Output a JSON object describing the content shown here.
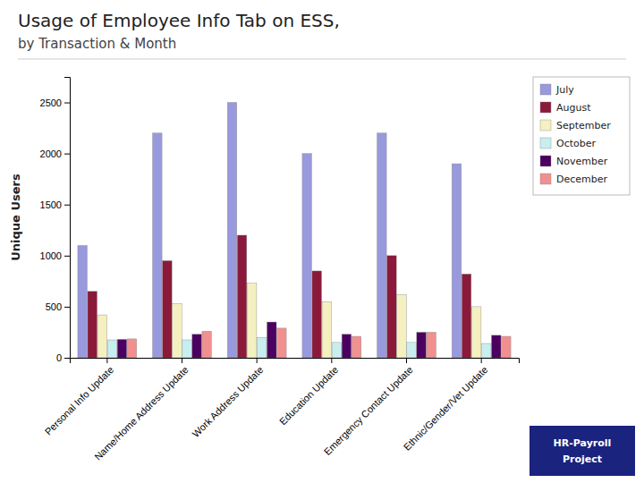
{
  "chart_data": {
    "type": "bar",
    "title": "Usage of Employee Info Tab on ESS,",
    "subtitle": "by Transaction & Month",
    "ylabel": "Unique Users",
    "annotations": [
      "HR-Payroll",
      "Project"
    ],
    "categories": [
      "Personal Info Update",
      "Name/Home Address Update",
      "Work Address Update",
      "Education Update",
      "Emergency Contact Update",
      "Ethnic/Gender/Vet Update"
    ],
    "series": [
      {
        "name": "July",
        "color": "#9999DD",
        "values": [
          1100,
          2200,
          2500,
          2000,
          2200,
          1900
        ]
      },
      {
        "name": "August",
        "color": "#8B1A3A",
        "values": [
          650,
          950,
          1200,
          850,
          1000,
          820
        ]
      },
      {
        "name": "September",
        "color": "#F5F0C0",
        "values": [
          420,
          530,
          730,
          550,
          620,
          500
        ]
      },
      {
        "name": "October",
        "color": "#C8EEF0",
        "values": [
          175,
          175,
          200,
          150,
          150,
          140
        ]
      },
      {
        "name": "November",
        "color": "#4B0060",
        "values": [
          180,
          230,
          350,
          230,
          250,
          220
        ]
      },
      {
        "name": "December",
        "color": "#F09090",
        "values": [
          185,
          260,
          290,
          210,
          250,
          210
        ]
      }
    ],
    "ylim": [
      0,
      2750
    ],
    "yticks": [
      0,
      500,
      1000,
      1500,
      2000,
      2500
    ],
    "grid": false,
    "legend": "right"
  }
}
